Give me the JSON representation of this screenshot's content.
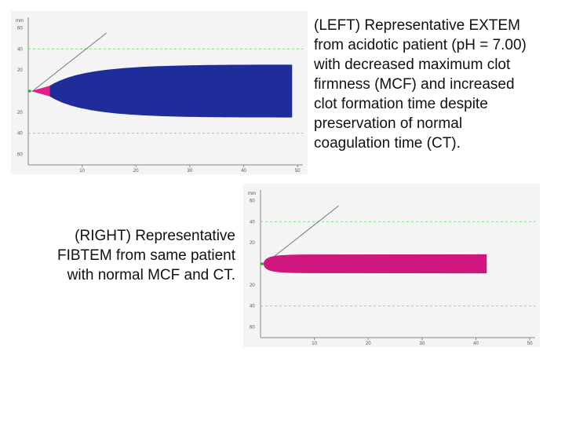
{
  "captions": {
    "left": [
      "(LEFT) Representative EXTEM",
      "from acidotic patient (pH = 7.00)",
      "with decreased maximum clot",
      "firmness (MCF) and increased",
      "clot formation time despite",
      "preservation of normal",
      "coagulation time (CT)."
    ],
    "right": [
      "(RIGHT) Representative",
      "FIBTEM from same patient",
      "with normal MCF and CT."
    ]
  },
  "chart_data": [
    {
      "type": "area",
      "name": "EXTEM",
      "unit": "mm",
      "x_ticks": [
        10,
        20,
        30,
        40,
        50
      ],
      "y_ticks": [
        60,
        40,
        20
      ],
      "xlim": [
        0,
        51
      ],
      "ylim": [
        -70,
        70
      ],
      "reference_lines_mm": [
        -40,
        40
      ],
      "ct": 0.5,
      "clot_formation_end": 4,
      "clot_formation_amplitude": 10,
      "end_time": 49,
      "max_amplitude": 50,
      "colors": {
        "formation": "#e0208c",
        "main": "#1f2d9a",
        "baseline": "#22aa22",
        "angle_line": "#777777",
        "grid": "#66cc66"
      }
    },
    {
      "type": "area",
      "name": "FIBTEM",
      "unit": "mm",
      "x_ticks": [
        10,
        20,
        30,
        40,
        50
      ],
      "y_ticks": [
        60,
        40,
        20
      ],
      "xlim": [
        0,
        51
      ],
      "ylim": [
        -70,
        70
      ],
      "reference_lines_mm": [
        -40,
        40
      ],
      "ct": 0.5,
      "end_time": 42,
      "max_amplitude": 18,
      "colors": {
        "main": "#d0167f",
        "baseline": "#22aa22",
        "angle_line": "#777777",
        "grid": "#66cc66"
      }
    }
  ]
}
